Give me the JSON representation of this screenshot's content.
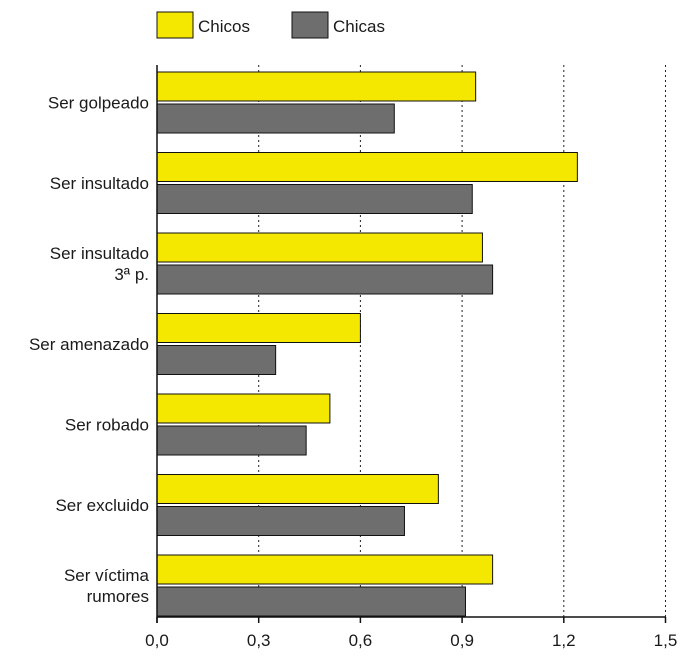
{
  "chart_data": {
    "type": "bar",
    "orientation": "horizontal",
    "title": "",
    "xlabel": "",
    "ylabel": "",
    "categories": [
      [
        "Ser golpeado"
      ],
      [
        "Ser insultado"
      ],
      [
        "Ser insultado",
        "3ª p."
      ],
      [
        "Ser amenazado"
      ],
      [
        "Ser robado"
      ],
      [
        "Ser excluido"
      ],
      [
        "Ser víctima",
        "rumores"
      ]
    ],
    "series": [
      {
        "name": "Chicos",
        "color": "#f5e800",
        "values": [
          0.94,
          1.24,
          0.96,
          0.6,
          0.51,
          0.83,
          0.99
        ]
      },
      {
        "name": "Chicas",
        "color": "#6e6e6e",
        "values": [
          0.7,
          0.93,
          0.99,
          0.35,
          0.44,
          0.73,
          0.91
        ]
      }
    ],
    "xlim": [
      0,
      1.5
    ],
    "xticks": [
      0.0,
      0.3,
      0.6,
      0.9,
      1.2,
      1.5
    ],
    "xtick_labels": [
      "0,0",
      "0,3",
      "0,6",
      "0,9",
      "1,2",
      "1,5"
    ],
    "grid": "vertical dotted",
    "legend_position": "top-left"
  }
}
